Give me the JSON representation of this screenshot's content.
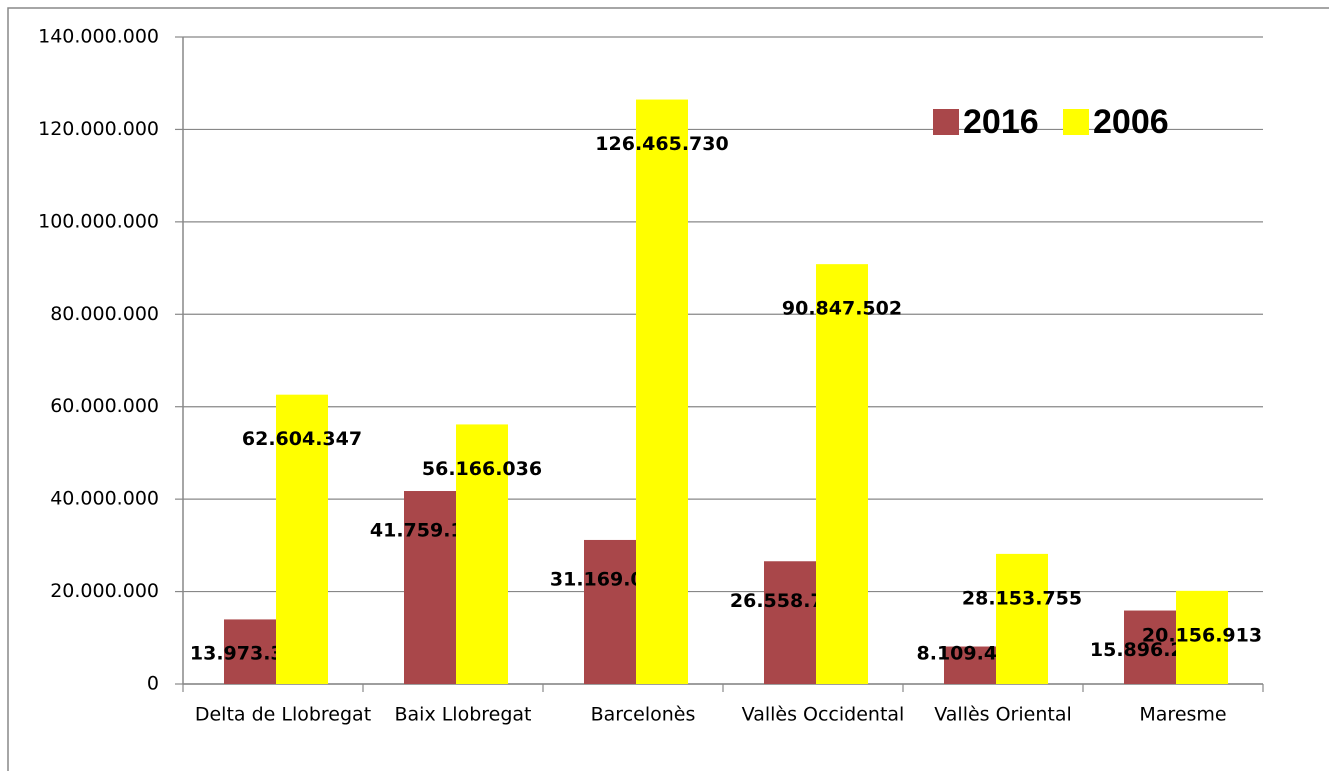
{
  "chart_data": {
    "type": "bar",
    "categories": [
      "Delta de Llobregat",
      "Baix Llobregat",
      "Barcelonès",
      "Vallès Occidental",
      "Vallès Oriental",
      "Maresme"
    ],
    "series": [
      {
        "name": "2016",
        "color": "#a9474a",
        "values": [
          13973380,
          41759105,
          31169022,
          26558770,
          8109435,
          15896259
        ],
        "value_labels": [
          "13.973.380",
          "41.759.105",
          "31.169.022",
          "26.558.770",
          "8.109.435",
          "15.896.259"
        ]
      },
      {
        "name": "2006",
        "color": "#ffff00",
        "values": [
          62604347,
          56166036,
          126465730,
          90847502,
          28153755,
          20156913
        ],
        "value_labels": [
          "62.604.347",
          "56.166.036",
          "126.465.730",
          "90.847.502",
          "28.153.755",
          "20.156.913"
        ]
      }
    ],
    "ylim": [
      0,
      140000000
    ],
    "yticks": [
      0,
      {
        "value": 20000000,
        "label": "20.000.000"
      },
      {
        "value": 40000000,
        "label": "40.000.000"
      },
      {
        "value": 60000000,
        "label": "60.000.000"
      },
      {
        "value": 80000000,
        "label": "80.000.000"
      },
      {
        "value": 100000000,
        "label": "100.000.000"
      },
      {
        "value": 120000000,
        "label": "120.000.000"
      },
      {
        "value": 140000000,
        "label": "140.000.000"
      }
    ],
    "grid": true,
    "legend": "upper-right"
  }
}
